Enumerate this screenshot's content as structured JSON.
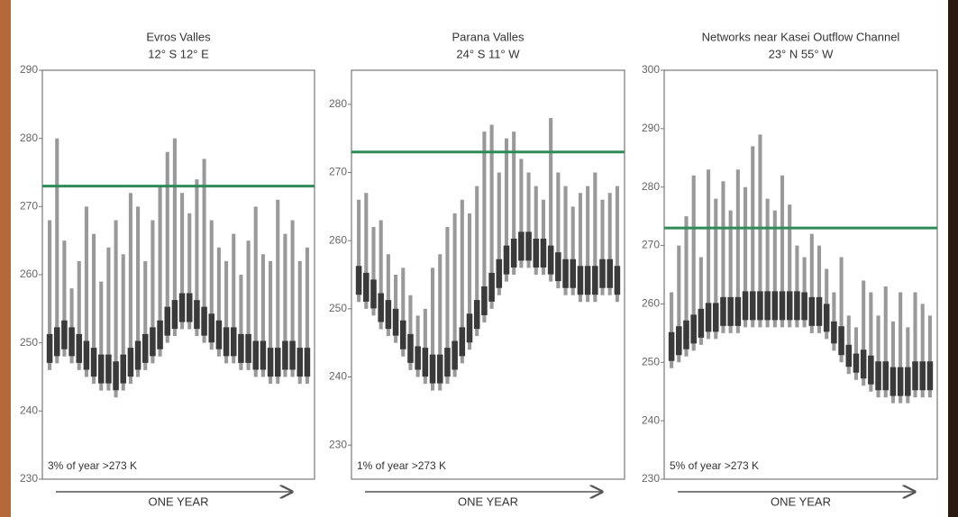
{
  "chart_data": [
    {
      "type": "range",
      "title": "Evros Valles",
      "subtitle": "12° S 12° E",
      "annotation": "3% of year >273 K",
      "xlabel": "ONE YEAR",
      "ylim": [
        230,
        290
      ],
      "yticks": [
        230,
        240,
        250,
        260,
        270,
        280,
        290
      ],
      "threshold": 273,
      "threshold_color": "#2e8b57",
      "color": "#3a3a3a",
      "low": [
        246,
        247,
        248,
        247,
        246,
        245,
        244,
        243,
        243,
        242,
        243,
        244,
        245,
        246,
        247,
        248,
        250,
        251,
        252,
        252,
        251,
        250,
        249,
        248,
        247,
        247,
        246,
        246,
        245,
        245,
        244,
        244,
        245,
        245,
        244,
        244
      ],
      "high": [
        268,
        280,
        265,
        258,
        262,
        270,
        266,
        259,
        264,
        268,
        263,
        272,
        270,
        262,
        268,
        273,
        278,
        280,
        272,
        269,
        274,
        277,
        268,
        264,
        262,
        266,
        260,
        265,
        270,
        263,
        262,
        271,
        266,
        268,
        262,
        264
      ]
    },
    {
      "type": "range",
      "title": "Parana Valles",
      "subtitle": "24° S 11° W",
      "annotation": "1% of year >273 K",
      "xlabel": "ONE YEAR",
      "ylim": [
        225,
        285
      ],
      "yticks": [
        230,
        240,
        250,
        260,
        270,
        280
      ],
      "threshold": 273,
      "threshold_color": "#2e8b57",
      "color": "#3a3a3a",
      "low": [
        251,
        250,
        249,
        247,
        246,
        245,
        243,
        241,
        240,
        239,
        238,
        238,
        239,
        240,
        242,
        244,
        246,
        248,
        250,
        252,
        254,
        255,
        256,
        256,
        255,
        255,
        254,
        253,
        252,
        252,
        251,
        251,
        251,
        252,
        252,
        251
      ],
      "high": [
        266,
        267,
        262,
        263,
        258,
        255,
        256,
        252,
        249,
        250,
        256,
        258,
        262,
        264,
        266,
        264,
        268,
        276,
        277,
        270,
        275,
        276,
        272,
        270,
        268,
        266,
        278,
        270,
        268,
        265,
        267,
        268,
        270,
        266,
        267,
        268
      ]
    },
    {
      "type": "range",
      "title": "Networks near Kasei Outflow Channel",
      "subtitle": "23° N 55° W",
      "annotation": "5% of year >273 K",
      "xlabel": "ONE YEAR",
      "ylim": [
        230,
        300
      ],
      "yticks": [
        230,
        240,
        250,
        260,
        270,
        280,
        290,
        300
      ],
      "threshold": 273,
      "threshold_color": "#2e8b57",
      "color": "#3a3a3a",
      "low": [
        249,
        250,
        251,
        252,
        253,
        254,
        254,
        255,
        255,
        255,
        256,
        256,
        256,
        256,
        256,
        256,
        256,
        256,
        256,
        255,
        255,
        254,
        252,
        250,
        248,
        247,
        246,
        245,
        244,
        244,
        243,
        243,
        243,
        244,
        244,
        244
      ],
      "high": [
        262,
        270,
        275,
        282,
        268,
        283,
        278,
        281,
        276,
        283,
        280,
        287,
        289,
        278,
        276,
        282,
        277,
        270,
        268,
        272,
        270,
        266,
        262,
        268,
        258,
        256,
        264,
        262,
        258,
        263,
        257,
        262,
        256,
        262,
        260,
        258
      ]
    }
  ]
}
